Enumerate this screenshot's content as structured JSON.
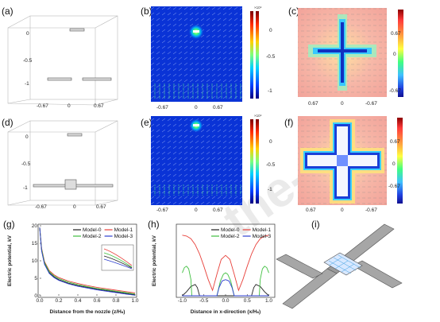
{
  "panels": {
    "a": {
      "label": "(a)",
      "ticks_x": [
        "-0.67",
        "0",
        "0.67"
      ],
      "ticks_z": [
        "0",
        "-0.5",
        "-1"
      ]
    },
    "b": {
      "label": "(b)",
      "ticks_x": [
        "-0.67",
        "0",
        "0.67"
      ],
      "ticks_y": [
        "0",
        "-0.5",
        "-1"
      ],
      "exp": "×10⁴"
    },
    "c": {
      "label": "(c)",
      "ticks_x": [
        "0.67",
        "0",
        "-0.67"
      ],
      "ticks_y": [
        "0.67",
        "0",
        "-0.67"
      ]
    },
    "d": {
      "label": "(d)",
      "ticks_x": [
        "-0.67",
        "0",
        "0.67"
      ],
      "ticks_z": [
        "0",
        "-0.5",
        "-1"
      ]
    },
    "e": {
      "label": "(e)",
      "ticks_x": [
        "-0.67",
        "0",
        "0.67"
      ],
      "ticks_y": [
        "0",
        "-0.5",
        "-1"
      ],
      "exp": "×10⁴"
    },
    "f": {
      "label": "(f)",
      "ticks_x": [
        "0.67",
        "0",
        "-0.67"
      ],
      "ticks_y": [
        "0.67",
        "0",
        "-0.67"
      ]
    },
    "i": {
      "label": "(i)"
    }
  },
  "watermark": "the-pr",
  "chart_data": [
    {
      "id": "g",
      "label": "(g)",
      "type": "line",
      "xlabel": "Distance from the nozzle (z/Hₛ)",
      "ylabel": "Electric potential, kV",
      "xlim": [
        0.0,
        1.0
      ],
      "ylim": [
        0,
        20
      ],
      "xticks": [
        "0.0",
        "0.2",
        "0.4",
        "0.6",
        "0.8",
        "1.0"
      ],
      "yticks": [
        "0",
        "5",
        "10",
        "15",
        "20"
      ],
      "legend_position": "top-right",
      "colors": {
        "Model-0": "#1f1f1f",
        "Model-1": "#e8403a",
        "Model-2": "#3fbf3f",
        "Model-3": "#2d3fd0"
      },
      "series": [
        {
          "name": "Model-0",
          "x": [
            0.0,
            0.02,
            0.05,
            0.1,
            0.15,
            0.2,
            0.3,
            0.4,
            0.5,
            0.6,
            0.7,
            0.8,
            0.9,
            1.0
          ],
          "y": [
            19.5,
            13.0,
            9.2,
            6.6,
            5.4,
            4.6,
            3.6,
            2.9,
            2.4,
            1.9,
            1.5,
            1.1,
            0.7,
            0.3
          ]
        },
        {
          "name": "Model-1",
          "x": [
            0.0,
            0.02,
            0.05,
            0.1,
            0.15,
            0.2,
            0.3,
            0.4,
            0.5,
            0.6,
            0.7,
            0.8,
            0.9,
            1.0
          ],
          "y": [
            19.5,
            13.6,
            9.8,
            7.2,
            6.0,
            5.2,
            4.2,
            3.5,
            2.9,
            2.4,
            2.0,
            1.6,
            1.2,
            0.8
          ]
        },
        {
          "name": "Model-2",
          "x": [
            0.0,
            0.02,
            0.05,
            0.1,
            0.15,
            0.2,
            0.3,
            0.4,
            0.5,
            0.6,
            0.7,
            0.8,
            0.9,
            1.0
          ],
          "y": [
            19.5,
            13.3,
            9.5,
            6.9,
            5.7,
            4.9,
            3.9,
            3.2,
            2.6,
            2.1,
            1.7,
            1.3,
            0.9,
            0.5
          ]
        },
        {
          "name": "Model-3",
          "x": [
            0.0,
            0.02,
            0.05,
            0.1,
            0.15,
            0.2,
            0.3,
            0.4,
            0.5,
            0.6,
            0.7,
            0.8,
            0.9,
            1.0
          ],
          "y": [
            19.5,
            12.8,
            9.0,
            6.4,
            5.2,
            4.4,
            3.4,
            2.7,
            2.2,
            1.7,
            1.3,
            0.9,
            0.5,
            0.15
          ]
        }
      ]
    },
    {
      "id": "h",
      "label": "(h)",
      "type": "line",
      "xlabel": "Distance in x-direction (x/Hₛ)",
      "ylabel": "Electric potential, kV",
      "xlim": [
        -1.1,
        1.1
      ],
      "ylim": [
        0,
        2.6
      ],
      "xticks": [
        "-1.0",
        "-0.5",
        "0.0",
        "0.5",
        "1.0"
      ],
      "legend_position": "top",
      "colors": {
        "Model-0": "#1f1f1f",
        "Model-1": "#e8403a",
        "Model-2": "#3fbf3f",
        "Model-3": "#2d3fd0"
      },
      "series": [
        {
          "name": "Model-0",
          "x": [
            -1.0,
            -0.9,
            -0.8,
            -0.7,
            -0.65,
            -0.6,
            0.6,
            0.65,
            0.7,
            0.8,
            0.9,
            1.0
          ],
          "y": [
            0.0,
            0.15,
            0.35,
            0.42,
            0.3,
            0.0,
            0.0,
            0.3,
            0.42,
            0.35,
            0.15,
            0.0
          ]
        },
        {
          "name": "Model-1",
          "x": [
            -1.0,
            -0.9,
            -0.8,
            -0.7,
            -0.6,
            -0.5,
            -0.4,
            -0.3,
            -0.2,
            -0.1,
            0.0,
            0.1,
            0.2,
            0.3,
            0.4,
            0.5,
            0.6,
            0.7,
            0.8,
            0.9,
            1.0
          ],
          "y": [
            2.25,
            2.22,
            2.12,
            1.9,
            1.55,
            1.1,
            0.6,
            0.2,
            0.8,
            1.35,
            1.5,
            1.35,
            0.8,
            0.2,
            0.6,
            1.1,
            1.55,
            1.9,
            2.12,
            2.22,
            2.25
          ]
        },
        {
          "name": "Model-2",
          "x": [
            -1.0,
            -0.95,
            -0.9,
            -0.85,
            -0.8,
            -0.78,
            -0.2,
            -0.12,
            -0.05,
            0.0,
            0.05,
            0.12,
            0.2,
            0.78,
            0.8,
            0.85,
            0.9,
            0.95,
            1.0
          ],
          "y": [
            0.85,
            1.05,
            1.1,
            1.0,
            0.6,
            0.0,
            0.0,
            0.55,
            0.8,
            0.85,
            0.8,
            0.55,
            0.0,
            0.0,
            0.6,
            1.0,
            1.1,
            1.05,
            0.85
          ]
        },
        {
          "name": "Model-3",
          "x": [
            -1.0,
            -0.2,
            -0.15,
            -0.08,
            0.0,
            0.08,
            0.15,
            0.2,
            1.0
          ],
          "y": [
            0.0,
            0.0,
            0.3,
            0.55,
            0.6,
            0.55,
            0.3,
            0.0,
            0.0
          ]
        }
      ]
    }
  ]
}
